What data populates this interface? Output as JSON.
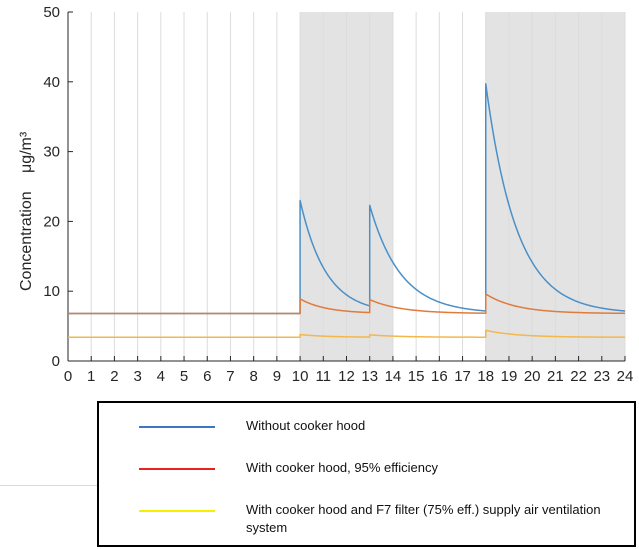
{
  "chart_data": {
    "type": "line",
    "title": "",
    "xlabel": "",
    "ylabel": "Concentration",
    "ylabel_unit": "μg/m³",
    "xlim": [
      0,
      24
    ],
    "ylim": [
      0,
      50
    ],
    "x_ticks": [
      0,
      1,
      2,
      3,
      4,
      5,
      6,
      7,
      8,
      9,
      10,
      11,
      12,
      13,
      14,
      15,
      16,
      17,
      18,
      19,
      20,
      21,
      22,
      23,
      24
    ],
    "y_ticks": [
      0,
      10,
      20,
      30,
      40,
      50
    ],
    "grid": "vertical",
    "shaded_intervals": [
      [
        10,
        14
      ],
      [
        18,
        24
      ]
    ],
    "series": [
      {
        "name": "Without cooker hood",
        "color": "#4a90c8",
        "baseline": 6.8,
        "events": [
          {
            "start": 10.0,
            "end": 13.0,
            "peak": 23.0,
            "decay_per_hour": 0.9
          },
          {
            "start": 13.0,
            "end": 18.0,
            "peak": 22.3,
            "decay_per_hour": 0.75
          },
          {
            "start": 18.0,
            "end": 24.0,
            "peak": 39.7,
            "decay_per_hour": 0.75
          }
        ]
      },
      {
        "name": "With cooker hood, 95% efficiency",
        "color": "#e07b3c",
        "baseline": 6.8,
        "events": [
          {
            "start": 10.0,
            "end": 13.0,
            "peak": 8.9,
            "decay_per_hour": 0.9
          },
          {
            "start": 13.0,
            "end": 18.0,
            "peak": 8.8,
            "decay_per_hour": 0.75
          },
          {
            "start": 18.0,
            "end": 24.0,
            "peak": 9.6,
            "decay_per_hour": 0.75
          }
        ]
      },
      {
        "name": "With cooker hood and F7 filter (75% eff.) supply air ventilation system",
        "color": "#f2b84b",
        "baseline": 3.4,
        "events": [
          {
            "start": 10.0,
            "end": 13.0,
            "peak": 3.8,
            "decay_per_hour": 0.9
          },
          {
            "start": 13.0,
            "end": 18.0,
            "peak": 3.75,
            "decay_per_hour": 0.75
          },
          {
            "start": 18.0,
            "end": 24.0,
            "peak": 4.4,
            "decay_per_hour": 0.75
          }
        ]
      }
    ]
  },
  "legend": {
    "items": [
      {
        "label": "Without cooker hood",
        "color": "#3a78c2"
      },
      {
        "label": "With cooker hood, 95% efficiency",
        "color": "#e8231f"
      },
      {
        "label": "With cooker hood and F7 filter (75% eff.) supply air ventilation system",
        "color": "#f5f000"
      }
    ]
  }
}
